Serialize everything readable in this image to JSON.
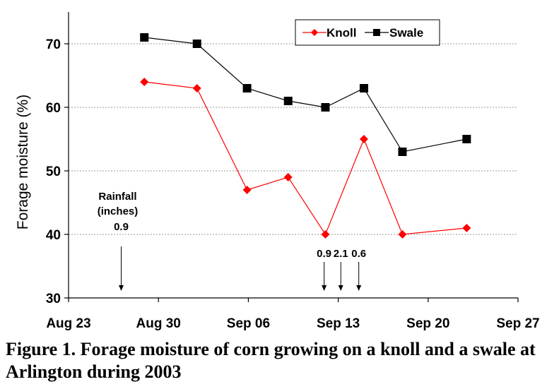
{
  "caption": "Figure 1. Forage moisture of corn growing on a knoll and a swale at Arlington during 2003",
  "chart_data": {
    "type": "line",
    "title": "",
    "xlabel": "",
    "ylabel": "Forage moisture (%)",
    "x_tick_labels": [
      "Aug 23",
      "Aug 30",
      "Sep 06",
      "Sep 13",
      "Sep 20",
      "Sep 27"
    ],
    "x_tick_days": [
      0,
      7,
      14,
      21,
      28,
      35
    ],
    "xlim_days": [
      0,
      35
    ],
    "ylim": [
      30,
      75
    ],
    "yticks": [
      30,
      40,
      50,
      60,
      70
    ],
    "grid": "horizontal dashed",
    "legend_position": "top-right",
    "series": [
      {
        "name": "Knoll",
        "color": "#ff0000",
        "marker": "diamond",
        "x_days": [
          5.9,
          10,
          13.9,
          17.1,
          20,
          23,
          26,
          31
        ],
        "values": [
          64,
          63,
          47,
          49,
          40,
          55,
          40,
          41
        ]
      },
      {
        "name": "Swale",
        "color": "#000000",
        "marker": "square",
        "x_days": [
          5.9,
          10,
          13.9,
          17.1,
          20,
          23,
          26,
          31
        ],
        "values": [
          71,
          70,
          63,
          61,
          60,
          63,
          53,
          55
        ]
      }
    ],
    "annotations": {
      "rainfall_title_line1": "Rainfall",
      "rainfall_title_line2": "(inches)",
      "events": [
        {
          "label": "0.9",
          "x_day": 4.1
        },
        {
          "label": "0.9",
          "x_day": 19.9
        },
        {
          "label": "2.1",
          "x_day": 21.2
        },
        {
          "label": "0.6",
          "x_day": 22.6
        }
      ]
    }
  }
}
